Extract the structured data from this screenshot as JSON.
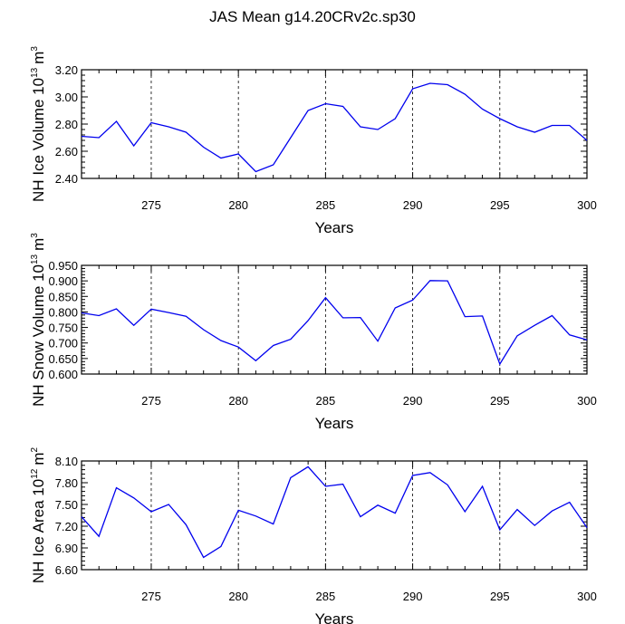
{
  "chart_data": [
    {
      "type": "line",
      "title": "JAS Mean g14.20CRv2c.sp30",
      "xlabel": "Years",
      "ylabel": "NH Ice Volume 10",
      "ylabel_exp": "13",
      "ylabel_unit": "m",
      "ylabel_unit_exp": "3",
      "xlim": [
        271,
        300
      ],
      "ylim": [
        2.4,
        3.2
      ],
      "xticks": [
        275,
        280,
        285,
        290,
        295,
        300
      ],
      "xtick_labels": [
        "275",
        "280",
        "285",
        "290",
        "295",
        "300"
      ],
      "yticks": [
        2.4,
        2.6,
        2.8,
        3.0,
        3.2
      ],
      "ytick_labels": [
        "2.40",
        "2.60",
        "2.80",
        "3.00",
        "3.20"
      ],
      "vgrid_dashed": [
        275,
        280,
        285,
        290,
        295
      ],
      "line_color": "#0000ee",
      "x": [
        271,
        272,
        273,
        274,
        275,
        276,
        277,
        278,
        279,
        280,
        281,
        282,
        283,
        284,
        285,
        286,
        287,
        288,
        289,
        290,
        291,
        292,
        293,
        294,
        295,
        296,
        297,
        298,
        299,
        300
      ],
      "y": [
        2.71,
        2.7,
        2.82,
        2.64,
        2.81,
        2.78,
        2.74,
        2.63,
        2.55,
        2.58,
        2.45,
        2.5,
        2.7,
        2.9,
        2.95,
        2.93,
        2.78,
        2.76,
        2.84,
        3.06,
        3.1,
        3.09,
        3.02,
        2.91,
        2.84,
        2.78,
        2.74,
        2.79,
        2.79,
        2.68
      ]
    },
    {
      "type": "line",
      "xlabel": "Years",
      "ylabel": "NH Snow Volume 10",
      "ylabel_exp": "13",
      "ylabel_unit": "m",
      "ylabel_unit_exp": "3",
      "xlim": [
        271,
        300
      ],
      "ylim": [
        0.6,
        0.95
      ],
      "xticks": [
        275,
        280,
        285,
        290,
        295,
        300
      ],
      "xtick_labels": [
        "275",
        "280",
        "285",
        "290",
        "295",
        "300"
      ],
      "yticks": [
        0.6,
        0.65,
        0.7,
        0.75,
        0.8,
        0.85,
        0.9,
        0.95
      ],
      "ytick_labels": [
        "0.600",
        "0.650",
        "0.700",
        "0.750",
        "0.800",
        "0.850",
        "0.900",
        "0.950"
      ],
      "vgrid_dashed": [
        275,
        280,
        285,
        290,
        295
      ],
      "line_color": "#0000ee",
      "x": [
        271,
        272,
        273,
        274,
        275,
        276,
        277,
        278,
        279,
        280,
        281,
        282,
        283,
        284,
        285,
        286,
        287,
        288,
        289,
        290,
        291,
        292,
        293,
        294,
        295,
        296,
        297,
        298,
        299,
        300
      ],
      "y": [
        0.797,
        0.788,
        0.81,
        0.757,
        0.809,
        0.798,
        0.786,
        0.743,
        0.708,
        0.687,
        0.643,
        0.692,
        0.712,
        0.772,
        0.846,
        0.781,
        0.782,
        0.706,
        0.813,
        0.838,
        0.901,
        0.9,
        0.785,
        0.787,
        0.632,
        0.723,
        0.757,
        0.788,
        0.726,
        0.71
      ]
    },
    {
      "type": "line",
      "xlabel": "Years",
      "ylabel": "NH Ice Area 10",
      "ylabel_exp": "12",
      "ylabel_unit": "m",
      "ylabel_unit_exp": "2",
      "xlim": [
        271,
        300
      ],
      "ylim": [
        6.6,
        8.1
      ],
      "xticks": [
        275,
        280,
        285,
        290,
        295,
        300
      ],
      "xtick_labels": [
        "275",
        "280",
        "285",
        "290",
        "295",
        "300"
      ],
      "yticks": [
        6.6,
        6.9,
        7.2,
        7.5,
        7.8,
        8.1
      ],
      "ytick_labels": [
        "6.60",
        "6.90",
        "7.20",
        "7.50",
        "7.80",
        "8.10"
      ],
      "vgrid_dashed": [
        275,
        280,
        285,
        290,
        295
      ],
      "line_color": "#0000ee",
      "x": [
        271,
        272,
        273,
        274,
        275,
        276,
        277,
        278,
        279,
        280,
        281,
        282,
        283,
        284,
        285,
        286,
        287,
        288,
        289,
        290,
        291,
        292,
        293,
        294,
        295,
        296,
        297,
        298,
        299,
        300
      ],
      "y": [
        7.33,
        7.06,
        7.73,
        7.59,
        7.4,
        7.5,
        7.22,
        6.77,
        6.92,
        7.42,
        7.34,
        7.23,
        7.87,
        8.02,
        7.75,
        7.78,
        7.33,
        7.49,
        7.38,
        7.9,
        7.94,
        7.77,
        7.4,
        7.75,
        7.15,
        7.43,
        7.21,
        7.41,
        7.53,
        7.18
      ]
    }
  ]
}
